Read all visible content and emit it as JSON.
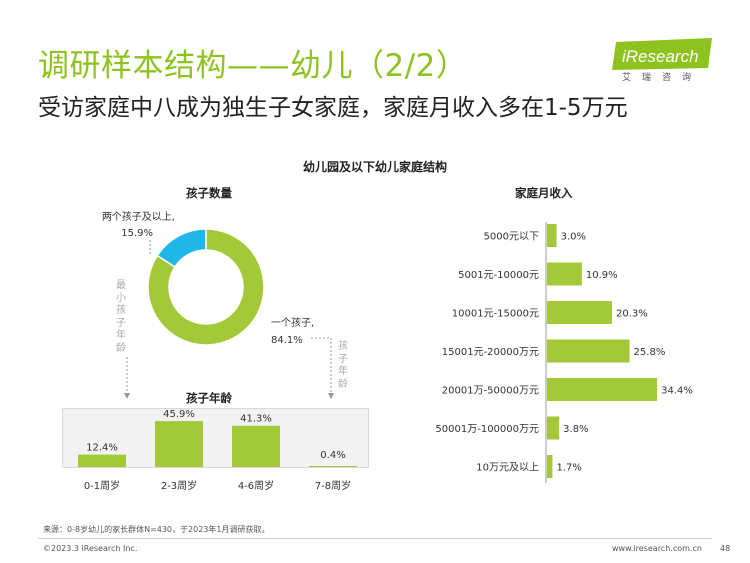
{
  "header": {
    "title": "调研样本结构——幼儿（2/2）",
    "subtitle": "受访家庭中八成为独生子女家庭，家庭月收入多在1-5万元",
    "logo_text": "iResearch",
    "logo_cn": "艾瑞咨询"
  },
  "figure_title": "幼儿园及以下幼儿家庭结构",
  "colors": {
    "green": "#a3c838",
    "blue": "#1fb6e8",
    "title_green": "#8dc21f"
  },
  "annotations": {
    "min_age": "最小孩子年龄",
    "child_age": "孩子年龄"
  },
  "chart_data": [
    {
      "type": "pie",
      "title": "孩子数量",
      "donut": true,
      "slices": [
        {
          "name": "一个孩子,",
          "value": 84.1,
          "label": "84.1%",
          "color": "#a3c838"
        },
        {
          "name": "两个孩子及以上,",
          "value": 15.9,
          "label": "15.9%",
          "color": "#1fb6e8"
        }
      ]
    },
    {
      "type": "bar",
      "title": "孩子年龄",
      "orientation": "vertical",
      "categories": [
        "0-1周岁",
        "2-3周岁",
        "4-6周岁",
        "7-8周岁"
      ],
      "values": [
        12.4,
        45.9,
        41.3,
        0.4
      ],
      "labels": [
        "12.4%",
        "45.9%",
        "41.3%",
        "0.4%"
      ],
      "color": "#a3c838"
    },
    {
      "type": "bar",
      "title": "家庭月收入",
      "orientation": "horizontal",
      "categories": [
        "5000元以下",
        "5001元-10000元",
        "10001元-15000元",
        "15001元-20000万元",
        "20001万-50000万元",
        "50001万-100000万元",
        "10万元及以上"
      ],
      "values": [
        3.0,
        10.9,
        20.3,
        25.8,
        34.4,
        3.8,
        1.7
      ],
      "labels": [
        "3.0%",
        "10.9%",
        "20.3%",
        "25.8%",
        "34.4%",
        "3.8%",
        "1.7%"
      ],
      "color": "#a3c838"
    }
  ],
  "footer": {
    "source": "来源：0-8岁幼儿的家长群体N=430，于2023年1月调研获取。",
    "copyright": "©2023.3 iResearch Inc.",
    "website": "www.iresearch.com.cn",
    "page": "48"
  }
}
